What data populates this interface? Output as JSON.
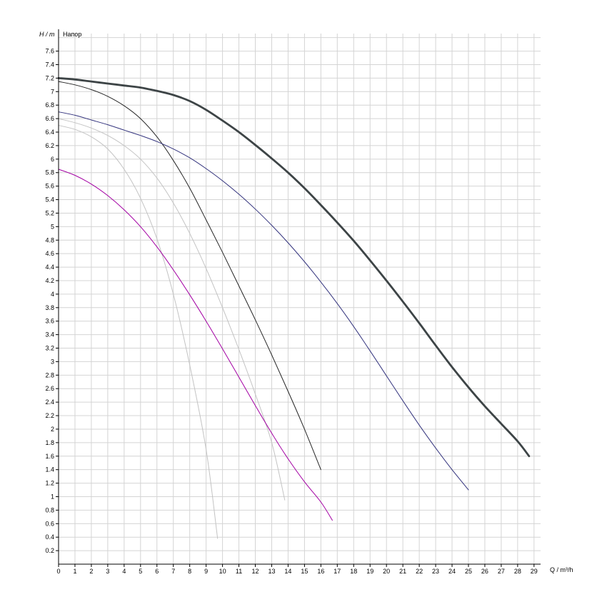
{
  "chart_data": {
    "type": "line",
    "title": "Напор",
    "xlabel": "Q / m³/h",
    "ylabel": "H / m",
    "xlim": [
      0,
      29.4
    ],
    "ylim": [
      0,
      7.86
    ],
    "grid": true,
    "grid_color": "#d4d4d4",
    "axis_color": "#000000",
    "x_tick_step": 1,
    "y_tick_step": 0.2,
    "x_ticks": [
      "0",
      "1",
      "2",
      "3",
      "4",
      "5",
      "6",
      "7",
      "8",
      "9",
      "10",
      "11",
      "12",
      "13",
      "14",
      "15",
      "16",
      "17",
      "18",
      "19",
      "20",
      "21",
      "22",
      "23",
      "24",
      "25",
      "26",
      "27",
      "28",
      "29"
    ],
    "y_ticks": [
      "0.2",
      "0.4",
      "0.6",
      "0.8",
      "1",
      "1.2",
      "1.4",
      "1.6",
      "1.8",
      "2",
      "2.2",
      "2.4",
      "2.6",
      "2.8",
      "3",
      "3.2",
      "3.4",
      "3.6",
      "3.8",
      "4",
      "4.2",
      "4.4",
      "4.6",
      "4.8",
      "5",
      "5.2",
      "5.4",
      "5.6",
      "5.8",
      "6",
      "6.2",
      "6.4",
      "6.6",
      "6.8",
      "7",
      "7.2",
      "7.4",
      "7.6"
    ],
    "series": [
      {
        "name": "bold-dark-curve",
        "color": "#3d4446",
        "width": 2.8,
        "points": [
          [
            0,
            7.2
          ],
          [
            1,
            7.18
          ],
          [
            2,
            7.15
          ],
          [
            3,
            7.12
          ],
          [
            4,
            7.09
          ],
          [
            5,
            7.06
          ],
          [
            6,
            7.01
          ],
          [
            7,
            6.95
          ],
          [
            8,
            6.86
          ],
          [
            9,
            6.73
          ],
          [
            10,
            6.57
          ],
          [
            11,
            6.4
          ],
          [
            12,
            6.21
          ],
          [
            13,
            6.01
          ],
          [
            14,
            5.8
          ],
          [
            15,
            5.57
          ],
          [
            16,
            5.32
          ],
          [
            17,
            5.06
          ],
          [
            18,
            4.79
          ],
          [
            19,
            4.5
          ],
          [
            20,
            4.2
          ],
          [
            21,
            3.89
          ],
          [
            22,
            3.57
          ],
          [
            23,
            3.24
          ],
          [
            24,
            2.92
          ],
          [
            25,
            2.62
          ],
          [
            26,
            2.34
          ],
          [
            27,
            2.08
          ],
          [
            28,
            1.82
          ],
          [
            28.7,
            1.6
          ]
        ]
      },
      {
        "name": "thin-black-curve",
        "color": "#262626",
        "width": 1,
        "points": [
          [
            0,
            7.15
          ],
          [
            1,
            7.1
          ],
          [
            2,
            7.03
          ],
          [
            3,
            6.93
          ],
          [
            4,
            6.79
          ],
          [
            5,
            6.6
          ],
          [
            6,
            6.33
          ],
          [
            7,
            5.98
          ],
          [
            8,
            5.57
          ],
          [
            9,
            5.1
          ],
          [
            10,
            4.62
          ],
          [
            11,
            4.12
          ],
          [
            12,
            3.62
          ],
          [
            13,
            3.1
          ],
          [
            14,
            2.56
          ],
          [
            15,
            2.0
          ],
          [
            16,
            1.4
          ]
        ]
      },
      {
        "name": "navy-curve",
        "color": "#34347e",
        "width": 1,
        "points": [
          [
            0,
            6.7
          ],
          [
            1,
            6.65
          ],
          [
            2,
            6.58
          ],
          [
            3,
            6.51
          ],
          [
            4,
            6.43
          ],
          [
            5,
            6.35
          ],
          [
            6,
            6.26
          ],
          [
            7,
            6.15
          ],
          [
            8,
            6.02
          ],
          [
            9,
            5.86
          ],
          [
            10,
            5.68
          ],
          [
            11,
            5.48
          ],
          [
            12,
            5.26
          ],
          [
            13,
            5.02
          ],
          [
            14,
            4.76
          ],
          [
            15,
            4.48
          ],
          [
            16,
            4.18
          ],
          [
            17,
            3.86
          ],
          [
            18,
            3.52
          ],
          [
            19,
            3.16
          ],
          [
            20,
            2.79
          ],
          [
            21,
            2.42
          ],
          [
            22,
            2.06
          ],
          [
            23,
            1.72
          ],
          [
            24,
            1.4
          ],
          [
            25,
            1.1
          ]
        ]
      },
      {
        "name": "gray-curve-flat",
        "color": "#c3c3c3",
        "width": 1,
        "points": [
          [
            0,
            6.6
          ],
          [
            1,
            6.54
          ],
          [
            2,
            6.46
          ],
          [
            3,
            6.35
          ],
          [
            4,
            6.2
          ],
          [
            5,
            6.0
          ],
          [
            6,
            5.72
          ],
          [
            7,
            5.35
          ],
          [
            8,
            4.9
          ],
          [
            9,
            4.38
          ],
          [
            10,
            3.8
          ],
          [
            11,
            3.18
          ],
          [
            12,
            2.52
          ],
          [
            13,
            1.8
          ],
          [
            13.8,
            0.95
          ]
        ]
      },
      {
        "name": "gray-curve-steep",
        "color": "#c3c3c3",
        "width": 1,
        "points": [
          [
            0,
            6.5
          ],
          [
            1,
            6.44
          ],
          [
            2,
            6.33
          ],
          [
            3,
            6.15
          ],
          [
            4,
            5.85
          ],
          [
            5,
            5.42
          ],
          [
            6,
            4.82
          ],
          [
            7,
            4.0
          ],
          [
            8,
            2.95
          ],
          [
            9,
            1.7
          ],
          [
            9.7,
            0.38
          ]
        ]
      },
      {
        "name": "magenta-curve",
        "color": "#a300a3",
        "width": 1,
        "points": [
          [
            0,
            5.85
          ],
          [
            1,
            5.76
          ],
          [
            2,
            5.63
          ],
          [
            3,
            5.46
          ],
          [
            4,
            5.25
          ],
          [
            5,
            5.0
          ],
          [
            6,
            4.7
          ],
          [
            7,
            4.36
          ],
          [
            8,
            3.99
          ],
          [
            9,
            3.6
          ],
          [
            10,
            3.19
          ],
          [
            11,
            2.77
          ],
          [
            12,
            2.35
          ],
          [
            13,
            1.94
          ],
          [
            14,
            1.56
          ],
          [
            15,
            1.22
          ],
          [
            16,
            0.92
          ],
          [
            16.7,
            0.65
          ]
        ]
      }
    ]
  }
}
